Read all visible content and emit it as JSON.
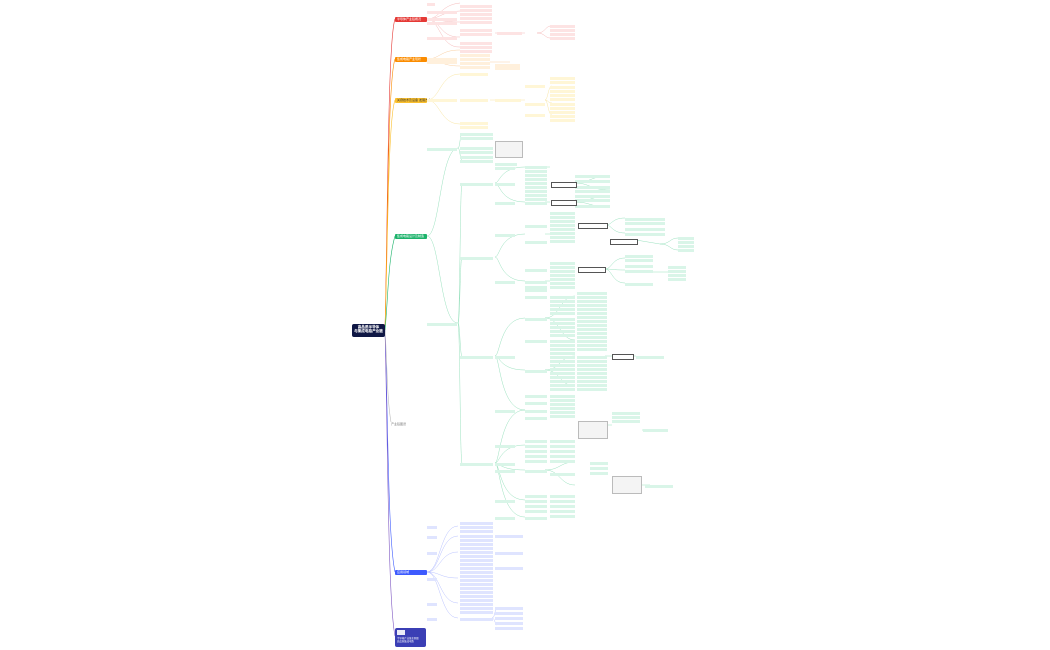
{
  "root": {
    "line1": "高品质半导体",
    "line2": "与集成电路产业链"
  },
  "branches": [
    {
      "id": "b1",
      "label": "半导体产业链概况",
      "color": "#e53935"
    },
    {
      "id": "b2",
      "label": "集成电路产业现状",
      "color": "#fb8c00"
    },
    {
      "id": "b3",
      "label": "关键技术及设备 发展方向",
      "color": "#fbc02d"
    },
    {
      "id": "b4",
      "label": "集成电路设计及制造",
      "color": "#1db36b"
    },
    {
      "id": "b5",
      "label": "应用领域",
      "color": "#3d5afe"
    }
  ],
  "floating_label": "产业链图谱",
  "footer": {
    "line1": "半导体产业链全景图",
    "line2": "高品质集成电路"
  },
  "colors": {
    "red": "#e53935",
    "orange": "#fb8c00",
    "yellow": "#fbc02d",
    "green": "#1db36b",
    "blue": "#3d5afe",
    "purple": "#7e57c2"
  }
}
